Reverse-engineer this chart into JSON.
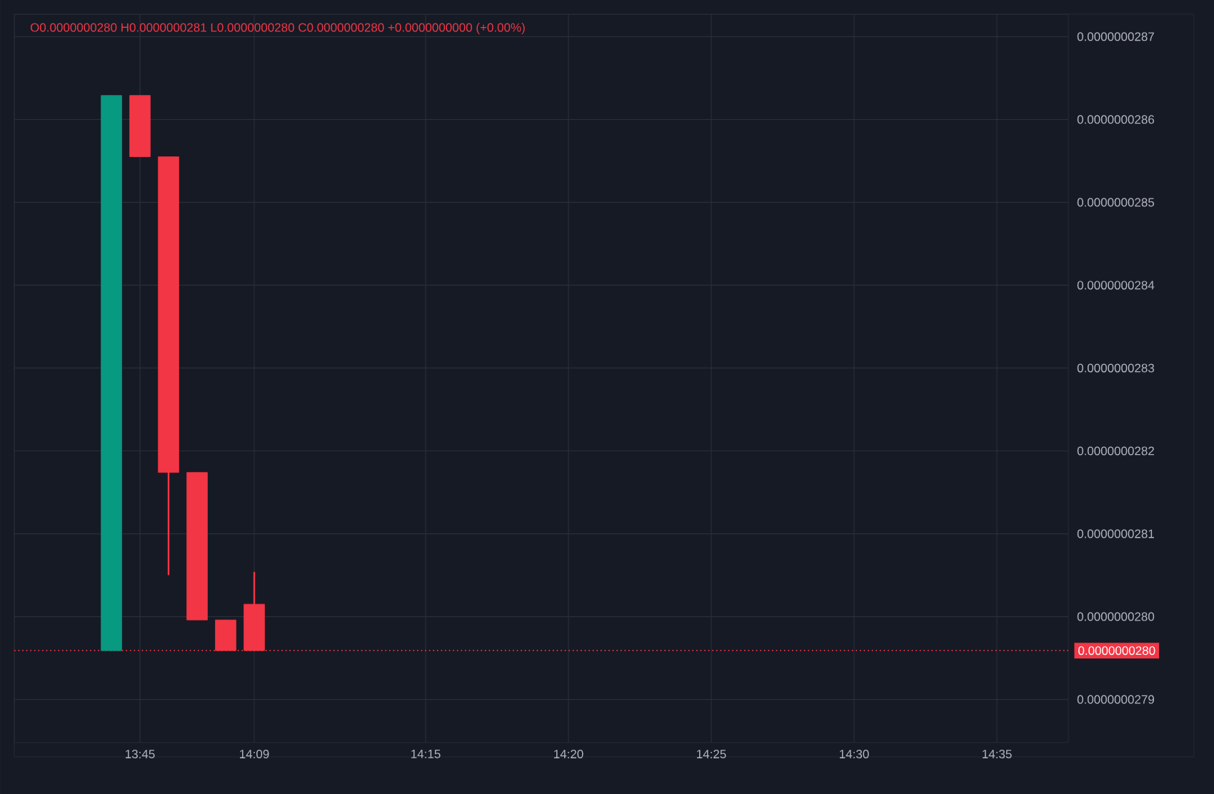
{
  "chart_data": {
    "type": "candlestick",
    "annotations": [
      "O0.0000000280 H0.0000000281 L0.0000000280 C0.0000000280 +0.0000000000 (+0.00%)"
    ],
    "categories": [
      null,
      "13:45",
      null,
      null,
      null,
      "14:09",
      null,
      null,
      null,
      null,
      null,
      "14:15",
      null,
      null,
      null,
      null,
      "14:20",
      null,
      null,
      null,
      null,
      "14:25",
      null,
      null,
      null,
      null,
      "14:30",
      null,
      null,
      null,
      null,
      "14:35",
      null,
      null
    ],
    "ohlc": [
      [
        2.7959e-08,
        2.8629e-08,
        2.7959e-08,
        2.8629e-08
      ],
      [
        2.8629e-08,
        2.8629e-08,
        2.8555e-08,
        2.8555e-08
      ],
      [
        2.8555e-08,
        2.8555e-08,
        2.805e-08,
        2.8174e-08
      ],
      [
        2.8174e-08,
        2.8174e-08,
        2.7996e-08,
        2.7996e-08
      ],
      [
        2.7996e-08,
        2.7996e-08,
        2.7959e-08,
        2.7959e-08
      ],
      [
        2.8015e-08,
        2.8054e-08,
        2.7959e-08,
        2.7959e-08
      ],
      null,
      null,
      null,
      null,
      null,
      null,
      null,
      null,
      null,
      null,
      null,
      null,
      null,
      null,
      null,
      null,
      null,
      null,
      null,
      null,
      null,
      null,
      null,
      null,
      null,
      null,
      null,
      null
    ],
    "colors": [
      "#089981",
      "#f23645",
      "#f23645",
      "#f23645",
      "#f23645",
      "#f23645",
      null,
      null,
      null,
      null,
      null,
      null,
      null,
      null,
      null,
      null,
      null,
      null,
      null,
      null,
      null,
      null,
      null,
      null,
      null,
      null,
      null,
      null,
      null,
      null,
      null,
      null,
      null,
      null
    ],
    "ylim": [
      2.7848e-08,
      2.8727e-08
    ],
    "yticks": [
      {
        "value": 2.79e-08,
        "label": "0.0000000279"
      },
      {
        "value": 2.8e-08,
        "label": "0.0000000280"
      },
      {
        "value": 2.81e-08,
        "label": "0.0000000281"
      },
      {
        "value": 2.82e-08,
        "label": "0.0000000282"
      },
      {
        "value": 2.83e-08,
        "label": "0.0000000283"
      },
      {
        "value": 2.84e-08,
        "label": "0.0000000284"
      },
      {
        "value": 2.85e-08,
        "label": "0.0000000285"
      },
      {
        "value": 2.86e-08,
        "label": "0.0000000286"
      },
      {
        "value": 2.87e-08,
        "label": "0.0000000287"
      }
    ],
    "ref_lines": [
      {
        "axis": "y",
        "value": 2.7959e-08,
        "label": "0.0000000280",
        "color": "#f23645",
        "line_style": "dotted"
      }
    ],
    "grid": true
  }
}
